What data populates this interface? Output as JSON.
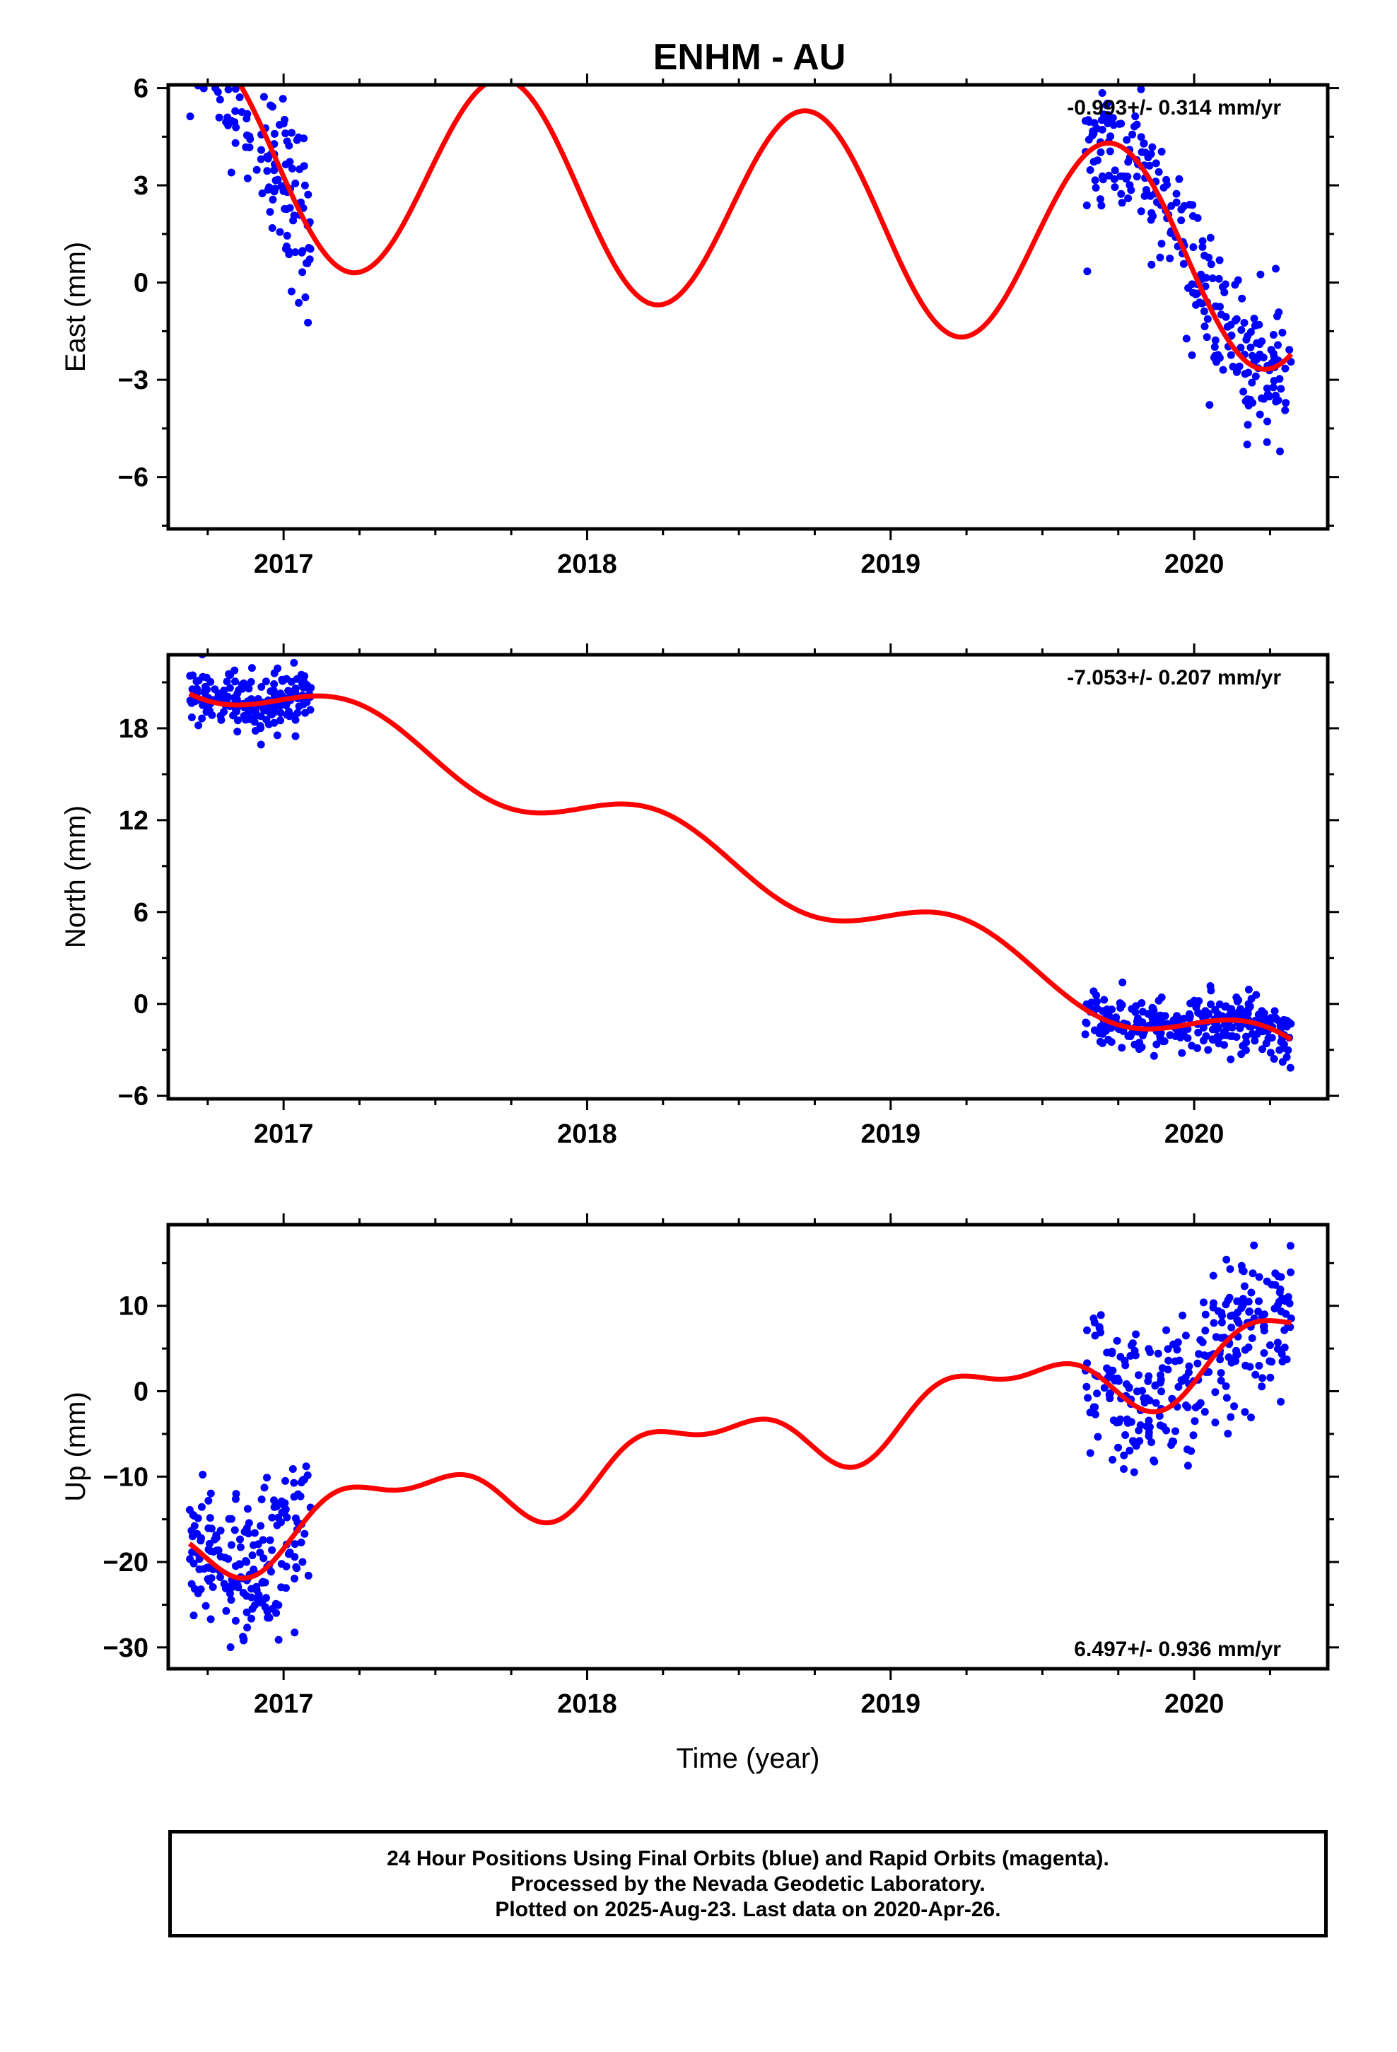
{
  "title": "ENHM - AU",
  "footer": {
    "line1": "24 Hour Positions Using Final Orbits (blue) and Rapid Orbits (magenta).",
    "line2": "Processed by the Nevada Geodetic Laboratory.",
    "line3": "Plotted on 2025-Aug-23. Last data on 2020-Apr-26."
  },
  "colors": {
    "data": "#0000ff",
    "model": "#ff0000",
    "frame": "#000000"
  },
  "chart_data": [
    {
      "type": "scatter",
      "ylabel": "East (mm)",
      "rate_label": "-0.993+/- 0.314 mm/yr",
      "rate_position": "top-right",
      "xlim": [
        2016.62,
        2020.44
      ],
      "ylim": [
        -7.6,
        6.1
      ],
      "xticks": [
        2017,
        2018,
        2019,
        2020
      ],
      "yticks": [
        -6,
        -3,
        0,
        3,
        6
      ],
      "ytick_labels": [
        "−6",
        "−3",
        "0",
        "3",
        "6"
      ],
      "model": {
        "offset": 2.28,
        "ref_year": 2018.5,
        "rate": -0.993,
        "annual_cos": -0.5,
        "annual_sin": -3.2,
        "semi_cos": 0,
        "semi_sin": 0
      },
      "segments": [
        {
          "start": 2016.69,
          "end": 2017.09,
          "count": 170,
          "scatter": 1.3
        },
        {
          "start": 2019.64,
          "end": 2020.32,
          "count": 260,
          "scatter": 1.05
        }
      ],
      "model_line": {
        "start": 2016.69,
        "end": 2020.32
      },
      "grid": false
    },
    {
      "type": "scatter",
      "ylabel": "North (mm)",
      "rate_label": "-7.053+/- 0.207 mm/yr",
      "rate_position": "top-right",
      "xlim": [
        2016.62,
        2020.44
      ],
      "ylim": [
        -6.2,
        22.8
      ],
      "xticks": [
        2017,
        2018,
        2019,
        2020
      ],
      "yticks": [
        -6,
        0,
        6,
        12,
        18
      ],
      "ytick_labels": [
        "−6",
        "0",
        "6",
        "12",
        "18"
      ],
      "model": {
        "offset": 9.1,
        "ref_year": 2018.5,
        "rate": -7.053,
        "annual_cos": 0.2,
        "annual_sin": 1.65,
        "semi_cos": 0,
        "semi_sin": 0
      },
      "segments": [
        {
          "start": 2016.69,
          "end": 2017.09,
          "count": 200,
          "scatter": 0.95
        },
        {
          "start": 2019.64,
          "end": 2020.32,
          "count": 300,
          "scatter": 0.9
        }
      ],
      "model_line": {
        "start": 2016.69,
        "end": 2020.32
      },
      "grid": false
    },
    {
      "type": "scatter",
      "ylabel": "Up (mm)",
      "xlabel": "Time (year)",
      "rate_label": "6.497+/- 0.936 mm/yr",
      "rate_position": "bottom-right",
      "xlim": [
        2016.62,
        2020.44
      ],
      "ylim": [
        -32.5,
        19.5
      ],
      "xticks": [
        2017,
        2018,
        2019,
        2020
      ],
      "yticks": [
        -30,
        -20,
        -10,
        0,
        10
      ],
      "ytick_labels": [
        "−30",
        "−20",
        "−10",
        "0",
        "10"
      ],
      "model": {
        "offset": -6.0,
        "ref_year": 2018.5,
        "rate": 6.497,
        "annual_cos": -2.4,
        "annual_sin": 2.6,
        "semi_cos": -0.3,
        "semi_sin": 1.8
      },
      "segments": [
        {
          "start": 2016.69,
          "end": 2017.09,
          "count": 190,
          "scatter": 4.4
        },
        {
          "start": 2019.64,
          "end": 2020.32,
          "count": 280,
          "scatter": 4.2
        }
      ],
      "model_line": {
        "start": 2016.69,
        "end": 2020.32
      },
      "grid": false
    }
  ]
}
